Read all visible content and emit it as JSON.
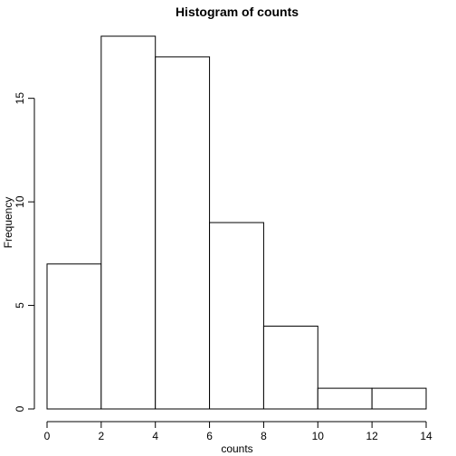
{
  "chart_data": {
    "type": "bar",
    "title": "Histogram of counts",
    "xlabel": "counts",
    "ylabel": "Frequency",
    "bins": [
      {
        "start": 0,
        "end": 2,
        "value": 7
      },
      {
        "start": 2,
        "end": 4,
        "value": 18
      },
      {
        "start": 4,
        "end": 6,
        "value": 17
      },
      {
        "start": 6,
        "end": 8,
        "value": 9
      },
      {
        "start": 8,
        "end": 10,
        "value": 4
      },
      {
        "start": 10,
        "end": 12,
        "value": 1
      },
      {
        "start": 12,
        "end": 14,
        "value": 1
      }
    ],
    "xlim": [
      0,
      14
    ],
    "ylim": [
      0,
      18
    ],
    "xticks": [
      0,
      2,
      4,
      6,
      8,
      10,
      12,
      14
    ],
    "yticks": [
      0,
      5,
      10,
      15
    ],
    "grid": false,
    "colors": {
      "bar_fill": "#ffffff",
      "bar_stroke": "#000000"
    }
  }
}
